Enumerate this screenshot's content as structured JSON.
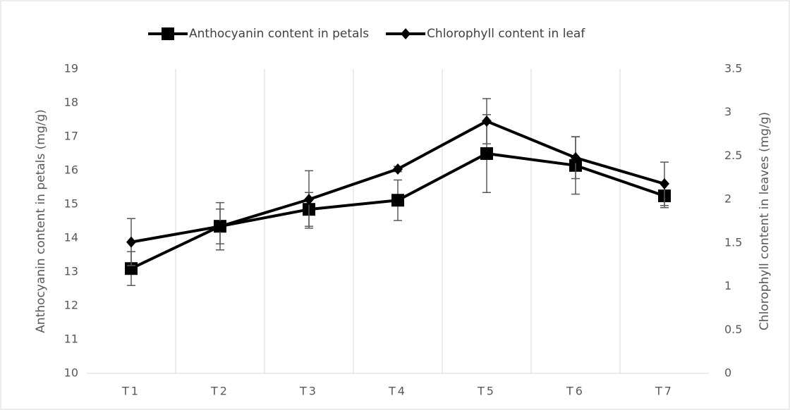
{
  "chart_data": {
    "type": "line",
    "categories": [
      "T1",
      "T2",
      "T3",
      "T4",
      "T5",
      "T6",
      "T7"
    ],
    "y_label": "Anthocyanin content in petals (mg/g)",
    "y2_label": "Chlorophyll content in leaves (mg/g)",
    "ylim": [
      10,
      19
    ],
    "yticks": [
      10,
      11,
      12,
      13,
      14,
      15,
      16,
      17,
      18,
      19
    ],
    "y2lim": [
      0,
      3.5
    ],
    "y2ticks": [
      0,
      0.5,
      1,
      1.5,
      2,
      2.5,
      3,
      3.5
    ],
    "grid": "vertical",
    "legend": "top",
    "series": [
      {
        "name": "Anthocyanin content in petals",
        "color": "#000000",
        "marker": "square",
        "values": [
          13.1,
          14.35,
          14.85,
          15.12,
          16.5,
          16.15,
          15.25
        ],
        "errors": [
          0.5,
          0.7,
          0.5,
          0.6,
          1.15,
          0.85,
          0.35
        ]
      },
      {
        "name": "Chlorophyll content in leaf",
        "color": "#000000",
        "marker": "diamond",
        "axis": "y2",
        "values": [
          1.51,
          1.69,
          2.0,
          2.35,
          2.9,
          2.48,
          2.18
        ],
        "errors": [
          0.27,
          0.2,
          0.33,
          0.03,
          0.26,
          0.24,
          0.25
        ]
      }
    ]
  }
}
